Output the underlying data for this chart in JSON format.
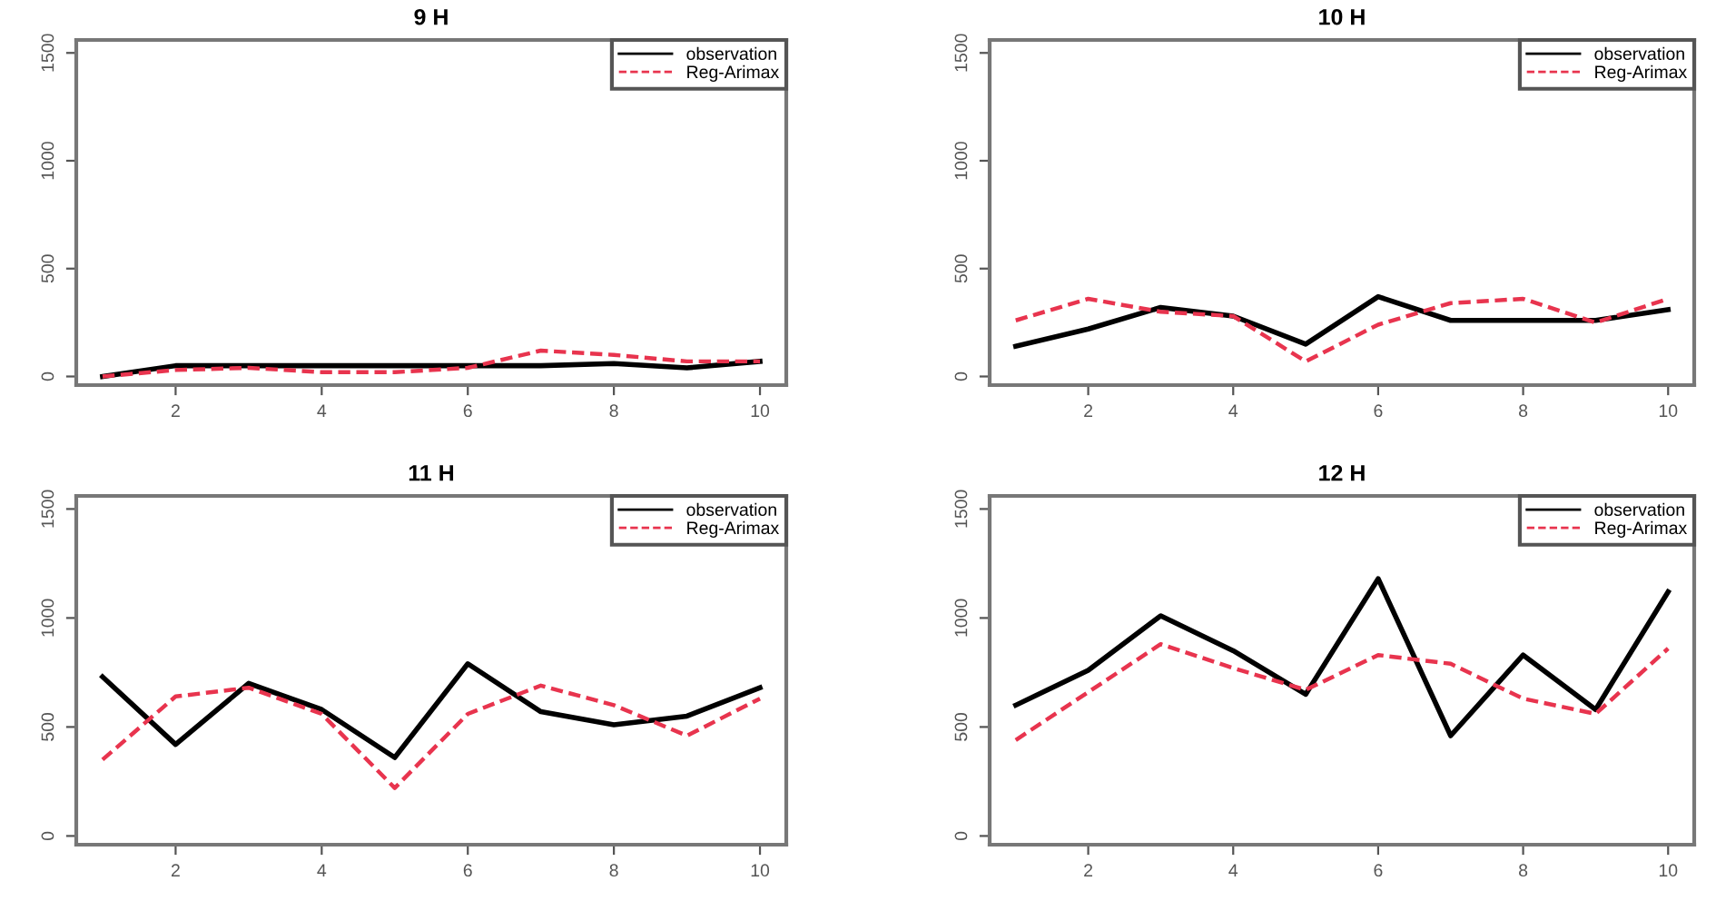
{
  "chart_data": [
    {
      "type": "line",
      "title": "9 H",
      "x": [
        1,
        2,
        3,
        4,
        5,
        6,
        7,
        8,
        9,
        10
      ],
      "xlim": [
        0.64,
        10.36
      ],
      "xticks": [
        2,
        4,
        6,
        8,
        10
      ],
      "ylim": [
        -40,
        1560
      ],
      "yticks": [
        0,
        500,
        1000,
        1500
      ],
      "legend": "top right",
      "grid": false,
      "series": [
        {
          "name": "observation",
          "color": "#000000",
          "line_style": "solid",
          "values": [
            0,
            50,
            50,
            50,
            50,
            50,
            50,
            60,
            40,
            70
          ]
        },
        {
          "name": "Reg-Arimax",
          "color": "#e8344e",
          "line_style": "dashed",
          "values": [
            0,
            30,
            40,
            20,
            20,
            40,
            120,
            100,
            70,
            70
          ]
        }
      ]
    },
    {
      "type": "line",
      "title": "10 H",
      "x": [
        1,
        2,
        3,
        4,
        5,
        6,
        7,
        8,
        9,
        10
      ],
      "xlim": [
        0.64,
        10.36
      ],
      "xticks": [
        2,
        4,
        6,
        8,
        10
      ],
      "ylim": [
        -40,
        1560
      ],
      "yticks": [
        0,
        500,
        1000,
        1500
      ],
      "legend": "top right",
      "grid": false,
      "series": [
        {
          "name": "observation",
          "color": "#000000",
          "line_style": "solid",
          "values": [
            140,
            220,
            320,
            280,
            150,
            370,
            260,
            260,
            260,
            310
          ]
        },
        {
          "name": "Reg-Arimax",
          "color": "#e8344e",
          "line_style": "dashed",
          "values": [
            260,
            360,
            300,
            280,
            70,
            240,
            340,
            360,
            250,
            360
          ]
        }
      ]
    },
    {
      "type": "line",
      "title": "11 H",
      "x": [
        1,
        2,
        3,
        4,
        5,
        6,
        7,
        8,
        9,
        10
      ],
      "xlim": [
        0.64,
        10.36
      ],
      "xticks": [
        2,
        4,
        6,
        8,
        10
      ],
      "ylim": [
        -40,
        1560
      ],
      "yticks": [
        0,
        500,
        1000,
        1500
      ],
      "legend": "top right",
      "grid": false,
      "series": [
        {
          "name": "observation",
          "color": "#000000",
          "line_style": "solid",
          "values": [
            730,
            420,
            700,
            580,
            360,
            790,
            570,
            510,
            550,
            680
          ]
        },
        {
          "name": "Reg-Arimax",
          "color": "#e8344e",
          "line_style": "dashed",
          "values": [
            350,
            640,
            680,
            560,
            220,
            560,
            690,
            600,
            460,
            630
          ]
        }
      ]
    },
    {
      "type": "line",
      "title": "12 H",
      "x": [
        1,
        2,
        3,
        4,
        5,
        6,
        7,
        8,
        9,
        10
      ],
      "xlim": [
        0.64,
        10.36
      ],
      "xticks": [
        2,
        4,
        6,
        8,
        10
      ],
      "ylim": [
        -40,
        1560
      ],
      "yticks": [
        0,
        500,
        1000,
        1500
      ],
      "legend": "top right",
      "grid": false,
      "series": [
        {
          "name": "observation",
          "color": "#000000",
          "line_style": "solid",
          "values": [
            600,
            760,
            1010,
            850,
            650,
            1180,
            460,
            830,
            580,
            1120
          ]
        },
        {
          "name": "Reg-Arimax",
          "color": "#e8344e",
          "line_style": "dashed",
          "values": [
            440,
            660,
            880,
            770,
            670,
            830,
            790,
            630,
            560,
            860
          ]
        }
      ]
    }
  ]
}
